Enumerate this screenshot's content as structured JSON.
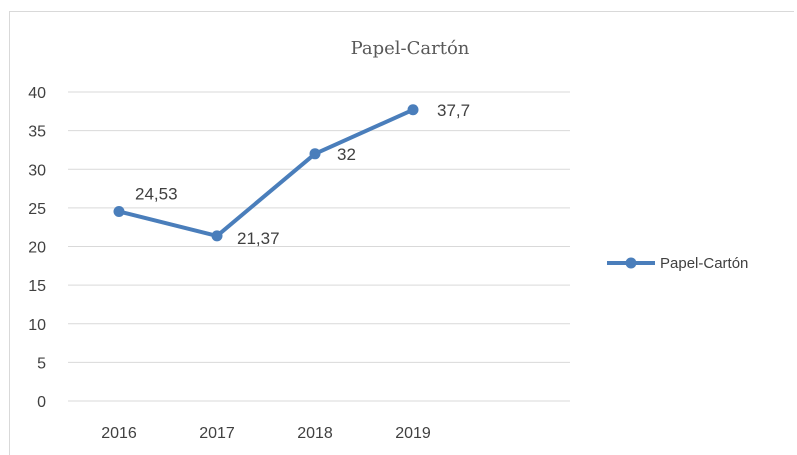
{
  "chart_data": {
    "type": "line",
    "title": "Papel-Cartón",
    "categories": [
      "2016",
      "2017",
      "2018",
      "2019"
    ],
    "series": [
      {
        "name": "Papel-Cartón",
        "values": [
          24.53,
          21.37,
          32,
          37.7
        ],
        "labels": [
          "24,53",
          "21,37",
          "32",
          "37,7"
        ],
        "color": "#4a7ebb"
      }
    ],
    "ylim": [
      0,
      40
    ],
    "yticks": [
      0,
      5,
      10,
      15,
      20,
      25,
      30,
      35,
      40
    ],
    "grid": true,
    "legend_position": "right"
  }
}
